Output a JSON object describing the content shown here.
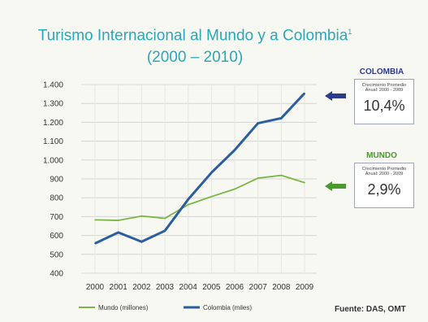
{
  "chart_data": {
    "type": "line",
    "title": "Turismo Internacional al Mundo y a Colombia",
    "title_superscript": "1",
    "subtitle": "(2000 – 2010)",
    "x": [
      "2000",
      "2001",
      "2002",
      "2003",
      "2004",
      "2005",
      "2006",
      "2007",
      "2008",
      "2009"
    ],
    "ylim": [
      400,
      1400
    ],
    "yticks": [
      "400",
      "500",
      "600",
      "700",
      "800",
      "900",
      "1.000",
      "1.100",
      "1.200",
      "1.300",
      "1.400"
    ],
    "ytick_values": [
      400,
      500,
      600,
      700,
      800,
      900,
      1000,
      1100,
      1200,
      1300,
      1400
    ],
    "grid": true,
    "series": [
      {
        "name": "Mundo (millones)",
        "color": "#7ab648",
        "values": [
          683,
          680,
          703,
          691,
          763,
          806,
          846,
          904,
          919,
          880
        ]
      },
      {
        "name": "Colombia (miles)",
        "color": "#2b5e9e",
        "values": [
          558,
          616,
          567,
          625,
          791,
          933,
          1053,
          1195,
          1222,
          1354
        ]
      }
    ],
    "legend_position": "bottom-left"
  },
  "side_boxes": [
    {
      "label": "COLOMBIA",
      "label_color": "#2d3a8c",
      "arrow_color": "#2d3a8c",
      "caption_line1": "Crecimiento Promedio",
      "caption_line2": "Anual: 2000 - 2009",
      "value": "10,4%"
    },
    {
      "label": "MUNDO",
      "label_color": "#4a9a2e",
      "arrow_color": "#4a9a2e",
      "caption_line1": "Crecimiento Promedio",
      "caption_line2": "Anual: 2000 - 2009",
      "value": "2,9%"
    }
  ],
  "source": "Fuente: DAS, OMT"
}
